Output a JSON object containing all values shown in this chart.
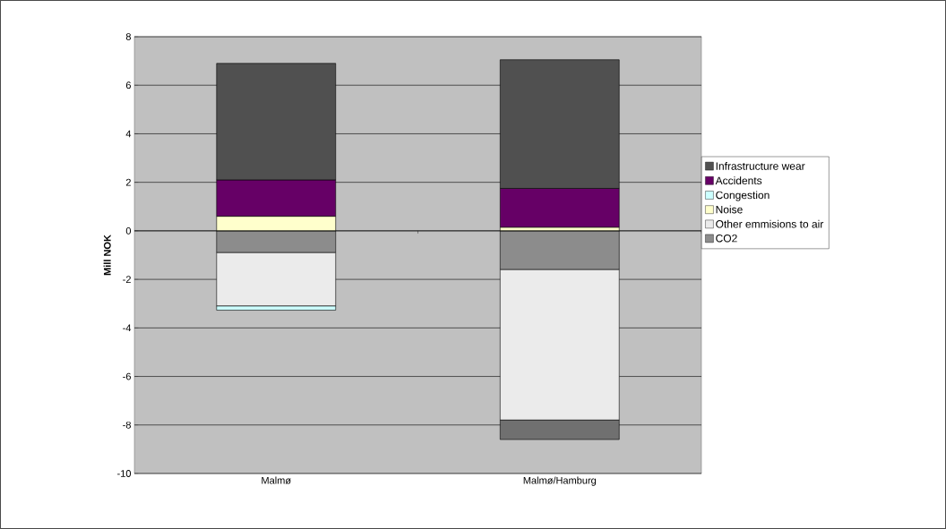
{
  "chart_data": {
    "type": "bar",
    "stacked": true,
    "ylabel": "Mill NOK",
    "categories": [
      "Malmø",
      "Malmø/Hamburg"
    ],
    "series": [
      {
        "name": "CO2",
        "color": "#8c8c8c",
        "values": [
          -0.9,
          -1.6
        ]
      },
      {
        "name": "Other emmisions to air",
        "color": "#ebebeb",
        "values": [
          -2.2,
          -6.2
        ]
      },
      {
        "name": "Noise",
        "color": "#ffffcc",
        "values": [
          0.6,
          0.15
        ]
      },
      {
        "name": "Congestion",
        "color": "#ccffff",
        "colors": [
          "#ccffff",
          "#707070"
        ],
        "values": [
          -0.17,
          -0.8
        ]
      },
      {
        "name": "Accidents",
        "color": "#660066",
        "values": [
          1.5,
          1.6
        ]
      },
      {
        "name": "Infrastructure wear",
        "color": "#505050",
        "values": [
          4.8,
          5.3
        ]
      }
    ],
    "ylim": [
      -10,
      8
    ],
    "yticks": [
      -10,
      -8,
      -6,
      -4,
      -2,
      0,
      2,
      4,
      6,
      8
    ],
    "grid": "y",
    "legend": "right"
  }
}
